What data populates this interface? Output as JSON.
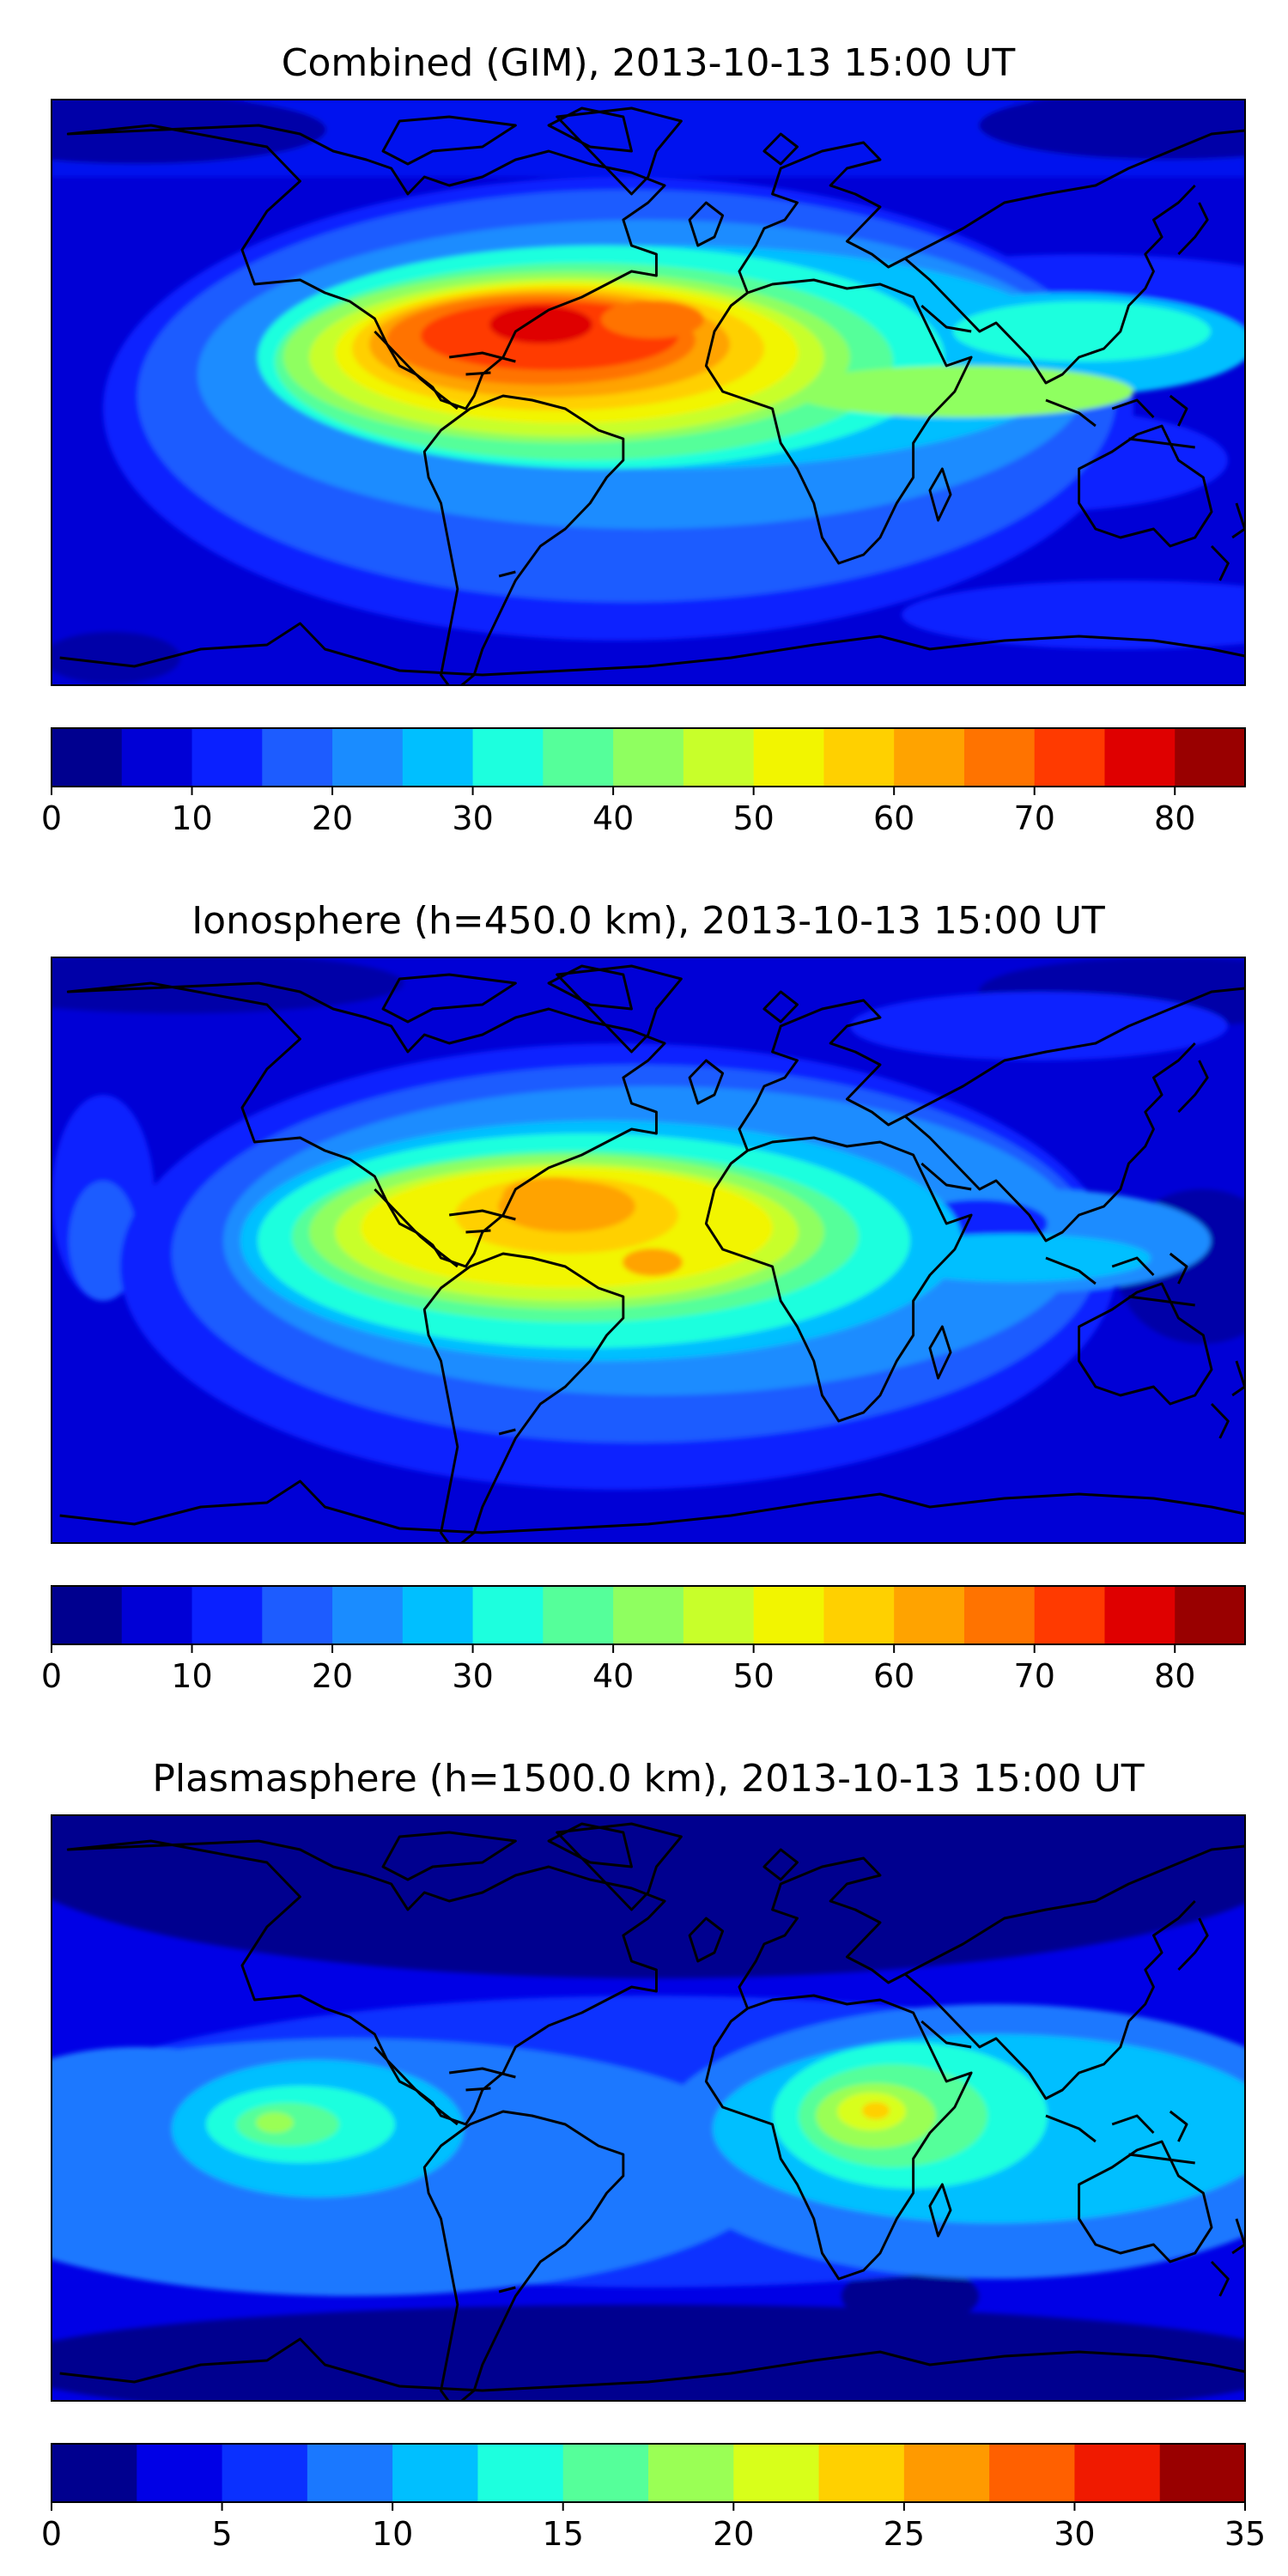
{
  "panels": [
    {
      "title": "Combined (GIM), 2013-10-13 15:00 UT",
      "colorbar": {
        "ticks": [
          "0",
          "10",
          "20",
          "30",
          "40",
          "50",
          "60",
          "70",
          "80"
        ],
        "min": 0,
        "max": 85,
        "step": 5,
        "colors": [
          "#00008f",
          "#0000d6",
          "#0a20ff",
          "#1d5cff",
          "#1a8cff",
          "#00bfff",
          "#1dffde",
          "#55ff9a",
          "#8fff60",
          "#c8ff2a",
          "#f2f500",
          "#ffd000",
          "#ffa300",
          "#ff7300",
          "#ff3a00",
          "#df0000",
          "#990000"
        ]
      }
    },
    {
      "title": "Ionosphere  (h=450.0 km), 2013-10-13 15:00 UT",
      "colorbar": {
        "ticks": [
          "0",
          "10",
          "20",
          "30",
          "40",
          "50",
          "60",
          "70",
          "80"
        ],
        "min": 0,
        "max": 85,
        "step": 5,
        "colors": [
          "#00008f",
          "#0000d6",
          "#0a20ff",
          "#1d5cff",
          "#1a8cff",
          "#00bfff",
          "#1dffde",
          "#55ff9a",
          "#8fff60",
          "#c8ff2a",
          "#f2f500",
          "#ffd000",
          "#ffa300",
          "#ff7300",
          "#ff3a00",
          "#df0000",
          "#990000"
        ]
      }
    },
    {
      "title": "Plasmasphere (h=1500.0 km), 2013-10-13 15:00 UT",
      "colorbar": {
        "ticks": [
          "0",
          "5",
          "10",
          "15",
          "20",
          "25",
          "30",
          "35"
        ],
        "min": 0,
        "max": 35,
        "step": 2.5,
        "colors": [
          "#00008f",
          "#0000e6",
          "#0a30ff",
          "#1a78ff",
          "#00bfff",
          "#1dffde",
          "#55ff9a",
          "#9aff55",
          "#d8ff1a",
          "#ffd000",
          "#ff9a00",
          "#ff6000",
          "#f01a00",
          "#990000"
        ]
      }
    }
  ]
}
